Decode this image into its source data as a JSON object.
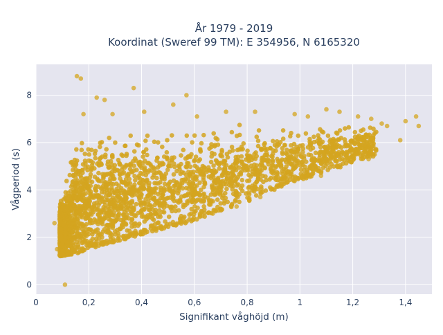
{
  "chart_data": {
    "type": "scatter",
    "title_lines": [
      "År 1979 - 2019",
      "Koordinat (Sweref 99 TM): E 354956, N 6165320"
    ],
    "xlabel": "Signifikant våghöjd (m)",
    "ylabel": "Vågperiod (s)",
    "xlim": [
      0,
      1.5
    ],
    "ylim": [
      -0.4,
      9.3
    ],
    "x_ticks": [
      0,
      0.2,
      0.4,
      0.6,
      0.8,
      1.0,
      1.2,
      1.4
    ],
    "x_tick_labels": [
      "0",
      "0,2",
      "0,4",
      "0,6",
      "0,8",
      "1",
      "1,2",
      "1,4"
    ],
    "y_ticks": [
      0,
      2,
      4,
      6,
      8
    ],
    "y_tick_labels": [
      "0",
      "2",
      "4",
      "6",
      "8"
    ],
    "grid": true,
    "legend": "none",
    "colors": {
      "marker": "#d4a520",
      "plot_background": "#e5e5ef",
      "grid": "#ffffff",
      "text": "#2a3f5f"
    },
    "series": [
      {
        "description_points": "representative outliers plus density envelope; dense cloud rendered procedurally",
        "x": [
          0.155,
          0.17,
          0.23,
          0.26,
          0.37,
          0.57,
          0.52,
          0.11,
          0.07,
          0.08,
          0.18,
          0.29,
          0.41,
          0.61,
          0.72,
          0.83,
          0.98,
          1.03,
          1.1,
          1.15,
          1.22,
          1.27,
          1.31,
          1.33,
          1.38,
          1.4,
          1.44,
          1.45,
          1.19,
          1.26,
          1.08,
          0.93,
          0.85,
          0.76,
          0.67,
          0.63
        ],
        "y": [
          8.8,
          8.7,
          7.9,
          7.8,
          8.3,
          8.0,
          7.6,
          0.0,
          2.6,
          1.5,
          7.2,
          7.2,
          7.3,
          7.1,
          7.3,
          7.3,
          7.2,
          7.1,
          7.4,
          7.3,
          7.1,
          7.0,
          6.8,
          6.7,
          6.1,
          6.9,
          7.1,
          6.7,
          5.2,
          5.3,
          4.6,
          4.2,
          3.7,
          3.3,
          3.0,
          2.9
        ]
      }
    ],
    "envelope": {
      "lower_x": [
        0.1,
        0.15,
        0.2,
        0.3,
        0.4,
        0.5,
        0.6,
        0.7,
        0.8,
        0.9,
        1.0,
        1.1,
        1.2,
        1.3
      ],
      "lower_y": [
        1.2,
        1.3,
        1.5,
        1.8,
        2.1,
        2.4,
        2.7,
        3.1,
        3.5,
        4.0,
        4.4,
        4.8,
        5.1,
        5.5
      ],
      "upper_x": [
        0.1,
        0.15,
        0.2,
        0.3,
        0.4,
        0.5,
        0.6,
        0.7,
        0.8,
        0.9,
        1.0,
        1.1,
        1.2,
        1.3
      ],
      "upper_y": [
        3.8,
        6.5,
        6.9,
        7.0,
        7.0,
        6.8,
        6.9,
        7.0,
        7.0,
        6.9,
        6.8,
        6.8,
        6.9,
        6.8
      ]
    }
  }
}
